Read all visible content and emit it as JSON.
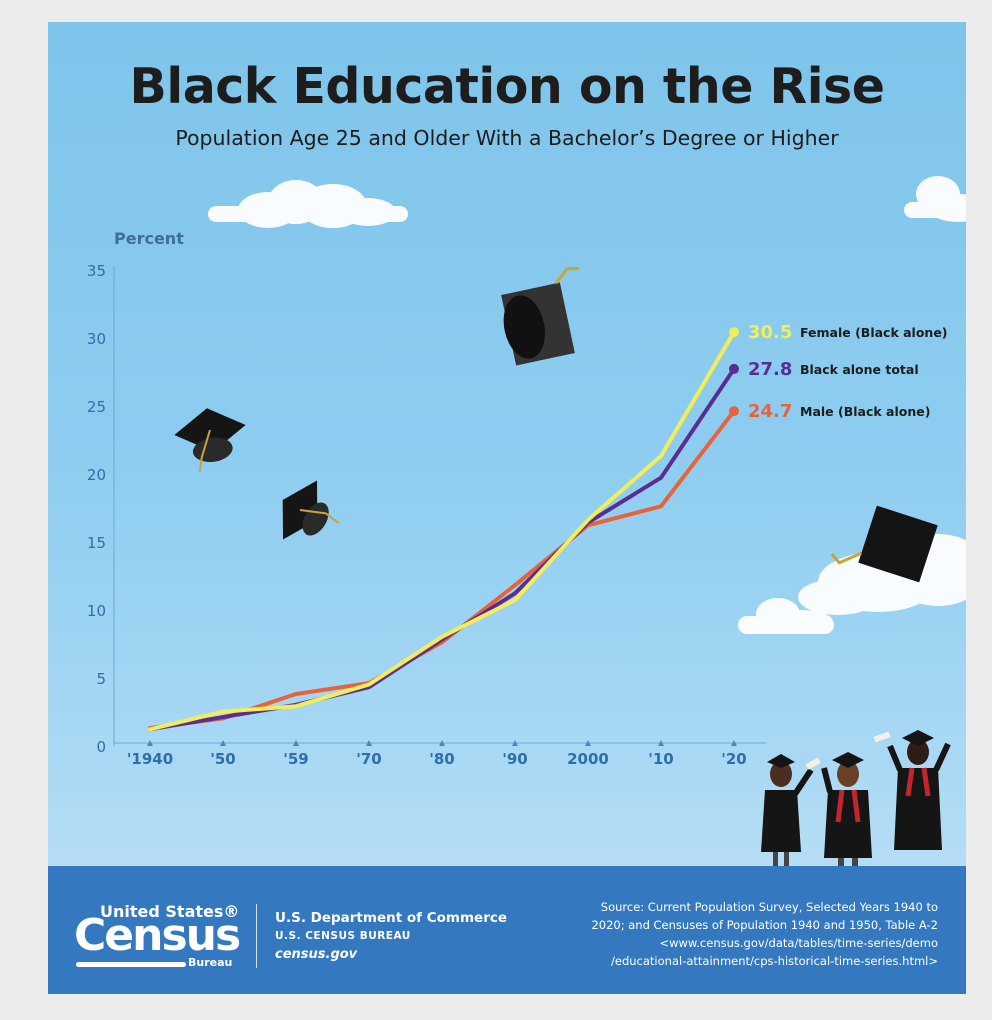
{
  "title": "Black Education on the Rise",
  "subtitle": "Population Age 25 and Older With a Bachelor’s Degree or Higher",
  "colors": {
    "female": "#f2ee5a",
    "total": "#5a2d91",
    "male": "#e8623a",
    "axis_text": "#2f6ea8",
    "footer": "#3479bf"
  },
  "chart_data": {
    "type": "line",
    "ylabel": "Percent",
    "ylim": [
      0,
      35
    ],
    "yticks": [
      "0",
      "5",
      "10",
      "15",
      "20",
      "25",
      "30",
      "35"
    ],
    "x": [
      1940,
      1950,
      1959,
      1970,
      1980,
      1990,
      2000,
      2010,
      2020
    ],
    "xtick_labels": [
      "'1940",
      "'50",
      "'59",
      "'70",
      "'80",
      "'90",
      "2000",
      "'10",
      "'20"
    ],
    "series": [
      {
        "name": "Female (Black alone)",
        "end_label": "30.5",
        "color": "#f2ee5a",
        "values": [
          1.3,
          2.6,
          3.0,
          4.6,
          8.1,
          10.8,
          16.7,
          21.4,
          30.5
        ]
      },
      {
        "name": "Black alone total",
        "end_label": "27.8",
        "color": "#5a2d91",
        "values": [
          1.3,
          2.2,
          3.1,
          4.4,
          7.9,
          11.3,
          16.5,
          19.8,
          27.8
        ]
      },
      {
        "name": "Male (Black alone)",
        "end_label": "24.7",
        "color": "#e8623a",
        "values": [
          1.4,
          2.1,
          3.9,
          4.7,
          7.7,
          11.9,
          16.3,
          17.7,
          24.7
        ]
      }
    ]
  },
  "footer": {
    "logo_united_states": "United States®",
    "logo_census": "Census",
    "logo_bureau": "Bureau",
    "department": "U.S. Department of Commerce",
    "bureau": "U.S. CENSUS BUREAU",
    "site": "census.gov",
    "source_lines": [
      "Source: Current Population Survey, Selected Years 1940 to",
      "2020; and Censuses of Population 1940 and 1950, Table A-2",
      "<www.census.gov/data/tables/time-series/demo",
      "/educational-attainment/cps-historical-time-series.html>"
    ]
  }
}
